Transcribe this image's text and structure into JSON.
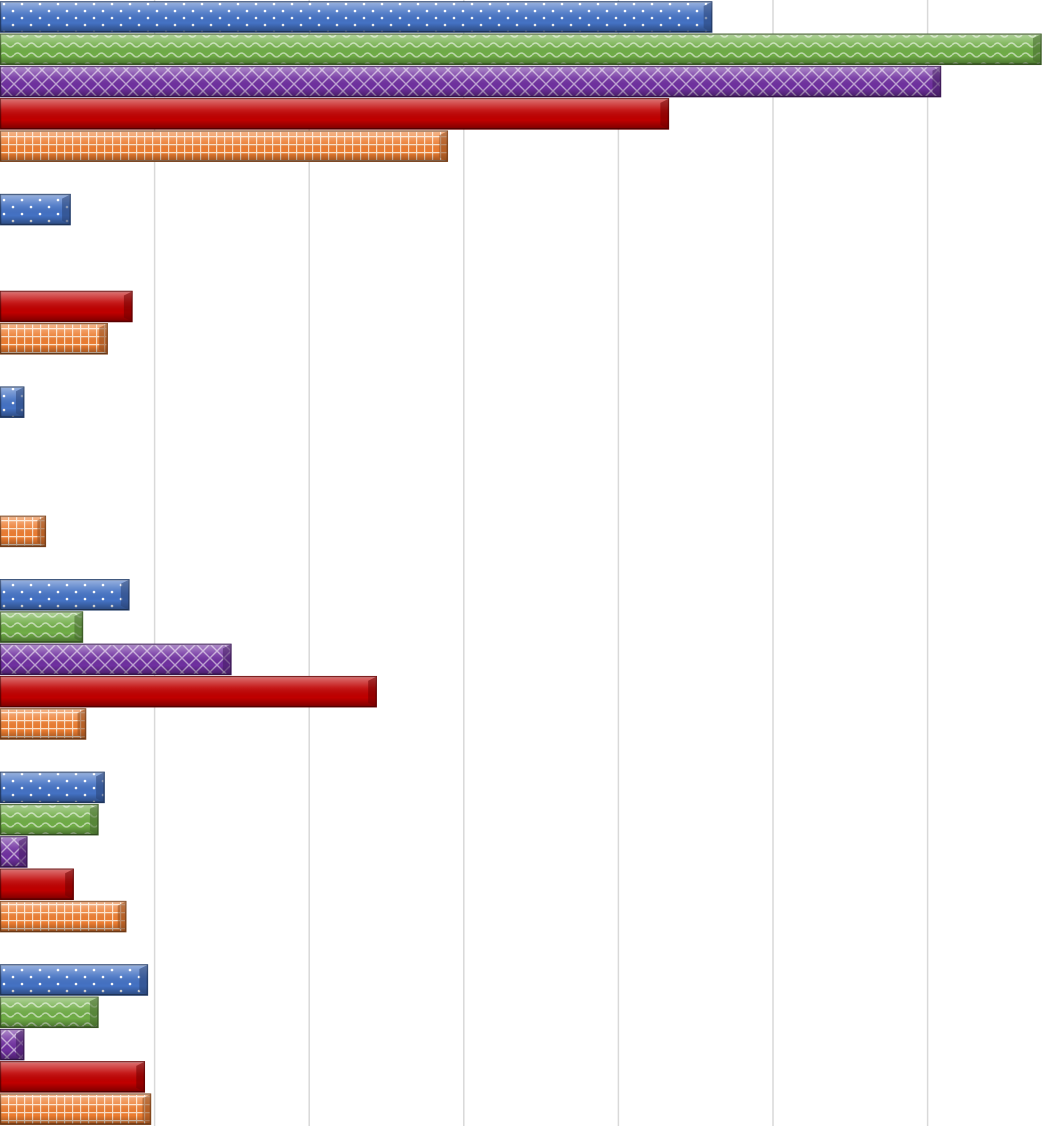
{
  "chart_data": {
    "type": "bar",
    "orientation": "horizontal",
    "grid": true,
    "legend": "none",
    "title": "",
    "xlabel": "",
    "ylabel": "",
    "xlim": [
      0,
      6.75
    ],
    "categories": [
      "",
      "",
      "",
      "",
      "",
      ""
    ],
    "series": [
      {
        "key": "s1",
        "color": "#4472C4",
        "pattern": "dots",
        "values": [
          4.6,
          0.45,
          0.15,
          0.83,
          0.67,
          0.95
        ]
      },
      {
        "key": "s2",
        "color": "#70AD47",
        "pattern": "waves",
        "values": [
          6.73,
          0.0,
          0.0,
          0.53,
          0.63,
          0.63
        ]
      },
      {
        "key": "s3",
        "color": "#7030A0",
        "pattern": "diamonds",
        "values": [
          6.08,
          0.0,
          0.0,
          1.49,
          0.17,
          0.15
        ]
      },
      {
        "key": "s4",
        "color": "#C00000",
        "pattern": "solid",
        "values": [
          4.32,
          0.85,
          0.0,
          2.43,
          0.47,
          0.93
        ]
      },
      {
        "key": "s5",
        "color": "#ED7D31",
        "pattern": "grid",
        "values": [
          2.89,
          0.69,
          0.29,
          0.55,
          0.81,
          0.97
        ]
      }
    ]
  }
}
